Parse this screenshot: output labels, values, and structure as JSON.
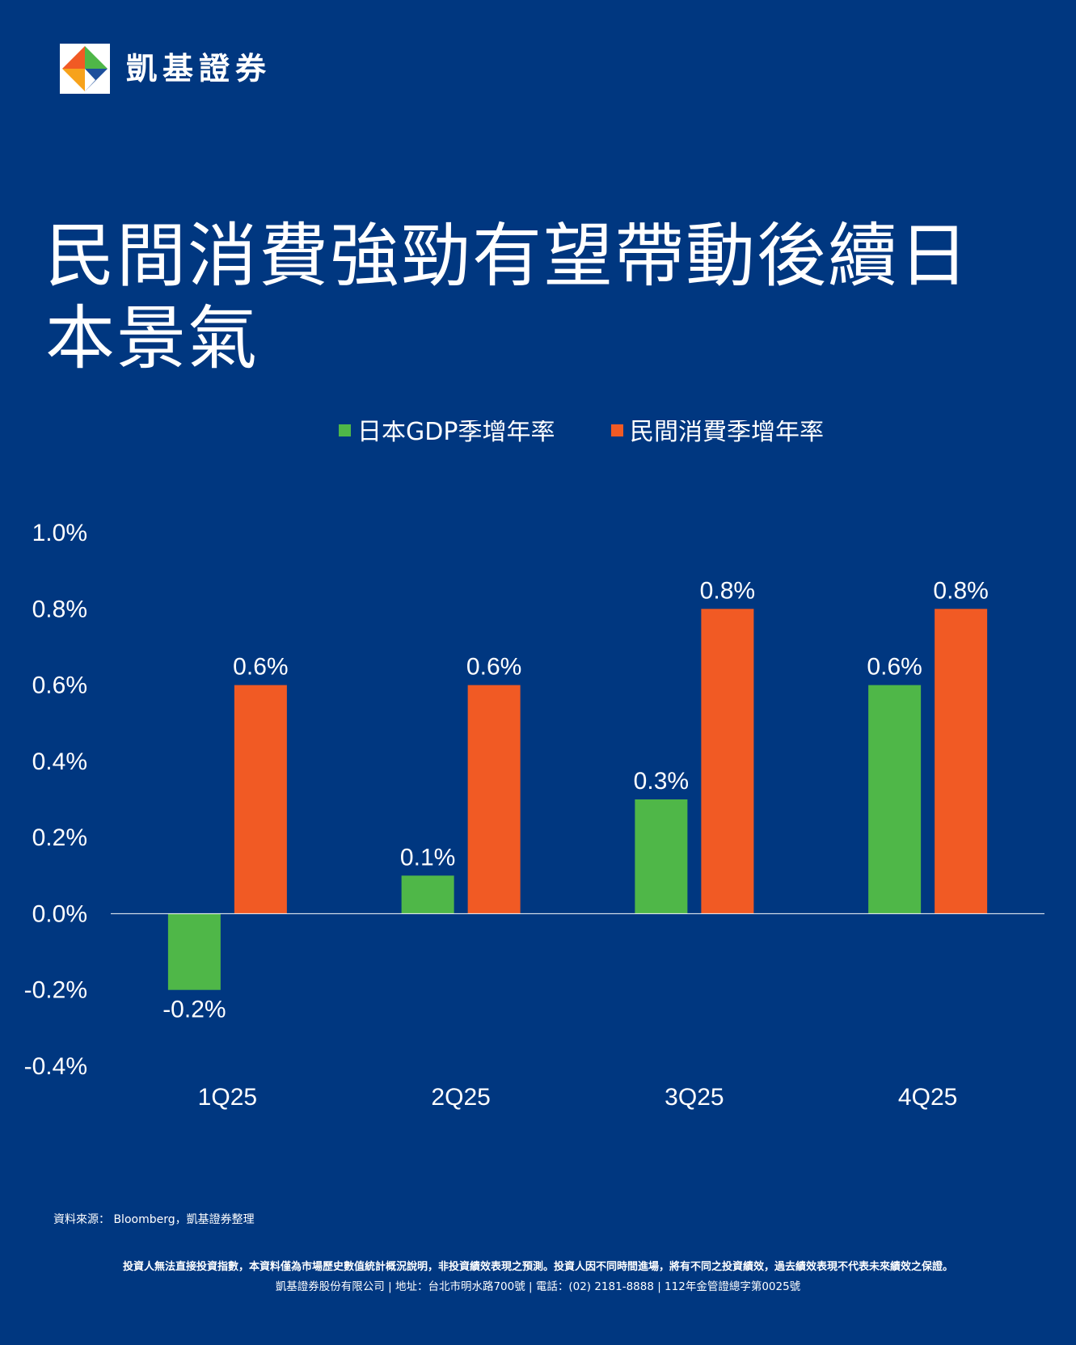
{
  "brand": {
    "name": "凱基證券",
    "logo_icon": "kgi-diamond-logo-icon",
    "colors": {
      "background": "#003780",
      "gdp_series": "#4fb748",
      "consumption_series": "#f15a24",
      "text": "#ffffff"
    }
  },
  "title": "民間消費強勁有望帶動後續日本景氣",
  "chart_data": {
    "type": "bar",
    "categories": [
      "1Q25",
      "2Q25",
      "3Q25",
      "4Q25"
    ],
    "series": [
      {
        "name": "日本GDP季增年率",
        "color": "#4fb748",
        "values": [
          -0.2,
          0.1,
          0.3,
          0.6
        ],
        "labels": [
          "-0.2%",
          "0.1%",
          "0.3%",
          "0.6%"
        ]
      },
      {
        "name": "民間消費季增年率",
        "color": "#f15a24",
        "values": [
          0.6,
          0.6,
          0.8,
          0.8
        ],
        "labels": [
          "0.6%",
          "0.6%",
          "0.8%",
          "0.8%"
        ]
      }
    ],
    "ylim": [
      -0.4,
      1.0
    ],
    "yticks": [
      1.0,
      0.8,
      0.6,
      0.4,
      0.2,
      0.0,
      -0.2,
      -0.4
    ],
    "ytick_labels": [
      "1.0%",
      "0.8%",
      "0.6%",
      "0.4%",
      "0.2%",
      "0.0%",
      "-0.2%",
      "-0.4%"
    ],
    "legend_position": "top-center",
    "grid": false
  },
  "footer": {
    "source": "資料來源： Bloomberg，凱基證券整理",
    "disclaimer": "投資人無法直接投資指數，本資料僅為市場歷史數值統計概況說明，非投資績效表現之預測。投資人因不同時間進場，將有不同之投資績效，過去績效表現不代表未來績效之保證。",
    "company_info": "凱基證券股份有限公司 | 地址：台北市明水路700號 | 電話：(02) 2181-8888 | 112年金管證總字第0025號"
  }
}
